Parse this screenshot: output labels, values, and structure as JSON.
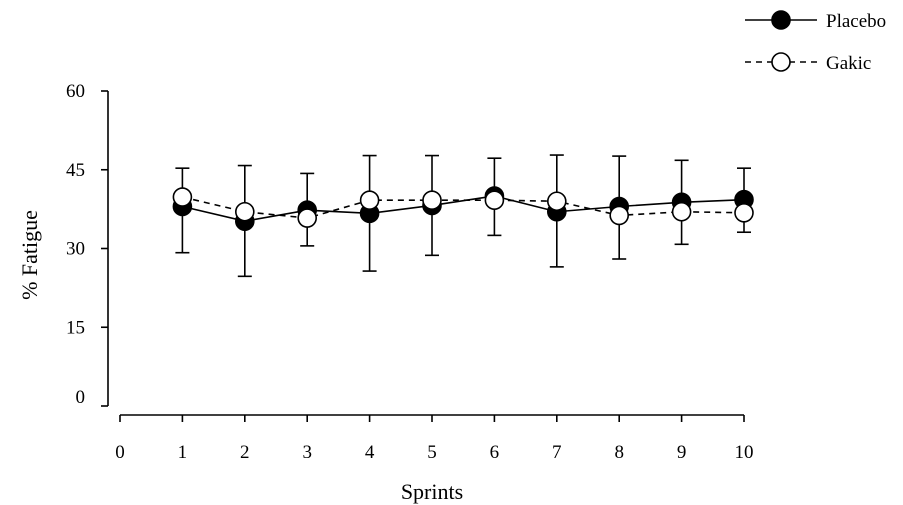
{
  "chart_data": {
    "type": "line",
    "xlabel": "Sprints",
    "ylabel": "% Fatigue",
    "xlim": [
      0,
      10
    ],
    "ylim": [
      0,
      60
    ],
    "xticks": [
      "0",
      "1",
      "2",
      "3",
      "4",
      "5",
      "6",
      "7",
      "8",
      "9",
      "10"
    ],
    "yticks": [
      "0",
      "15",
      "30",
      "45",
      "60"
    ],
    "grid": false,
    "legend_position": "top-right",
    "x": [
      1,
      2,
      3,
      4,
      5,
      6,
      7,
      8,
      9,
      10
    ],
    "series": [
      {
        "name": "Placebo",
        "marker": "filled-circle",
        "line_style": "solid",
        "color": "#000000",
        "values": [
          38.0,
          35.2,
          37.3,
          36.7,
          38.2,
          40.0,
          37.0,
          38.0,
          38.8,
          39.3
        ],
        "error": [
          8.8,
          10.5,
          6.8,
          11.0,
          9.5,
          7.5,
          10.5,
          10.0,
          8.0,
          6.2
        ]
      },
      {
        "name": "Gakic",
        "marker": "open-circle",
        "line_style": "dashed",
        "color": "#000000",
        "values": [
          39.8,
          37.0,
          35.8,
          39.2,
          39.2,
          39.2,
          39.0,
          36.3,
          37.0,
          36.8
        ],
        "error": [
          5.5,
          8.8,
          8.5,
          8.5,
          8.5,
          8.0,
          8.8,
          11.3,
          9.8,
          8.5
        ]
      }
    ]
  }
}
